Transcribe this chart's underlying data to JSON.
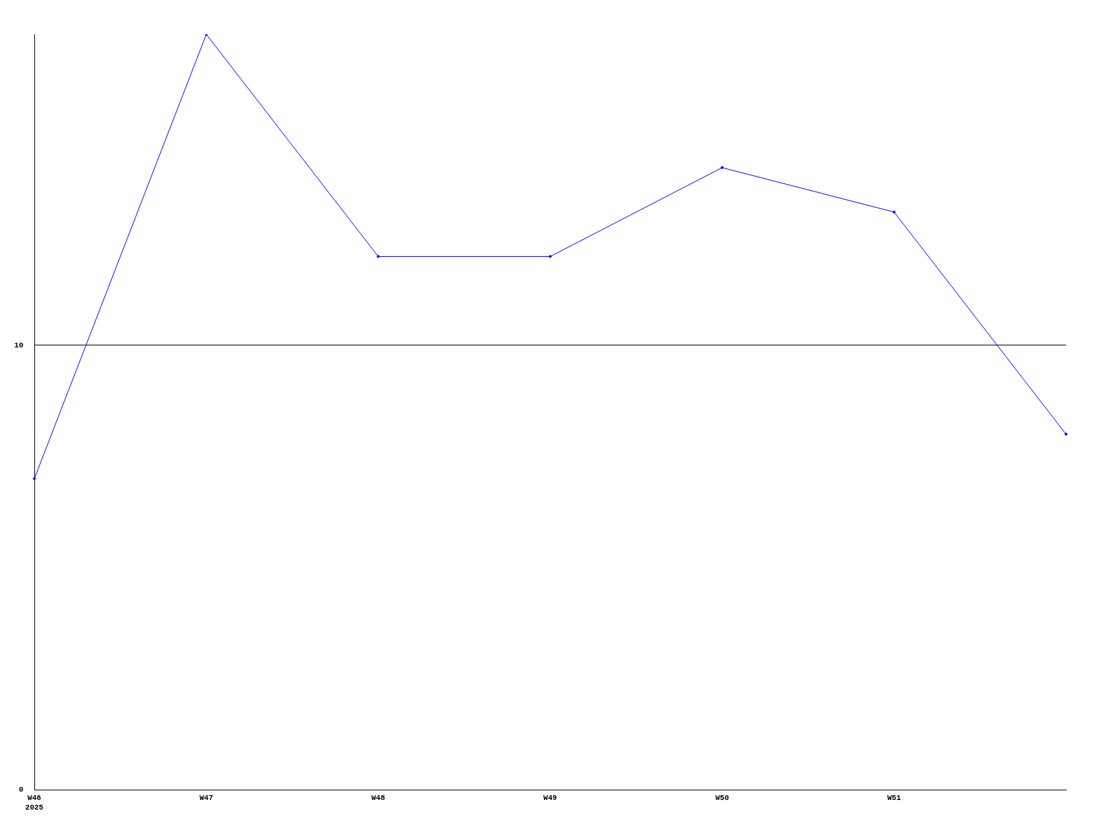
{
  "chart_data": {
    "type": "line",
    "categories": [
      "W46\n2025",
      "W47",
      "W48",
      "W49",
      "W50",
      "W51",
      null
    ],
    "series": [
      {
        "color": "#0000ff",
        "values": [
          7,
          17,
          12,
          12,
          14,
          13,
          8
        ]
      }
    ],
    "ylim": [
      0,
      17
    ],
    "yticks": [
      0,
      10
    ],
    "grid": "y",
    "marker": "diamond",
    "line_style": "solid",
    "legend": false
  }
}
